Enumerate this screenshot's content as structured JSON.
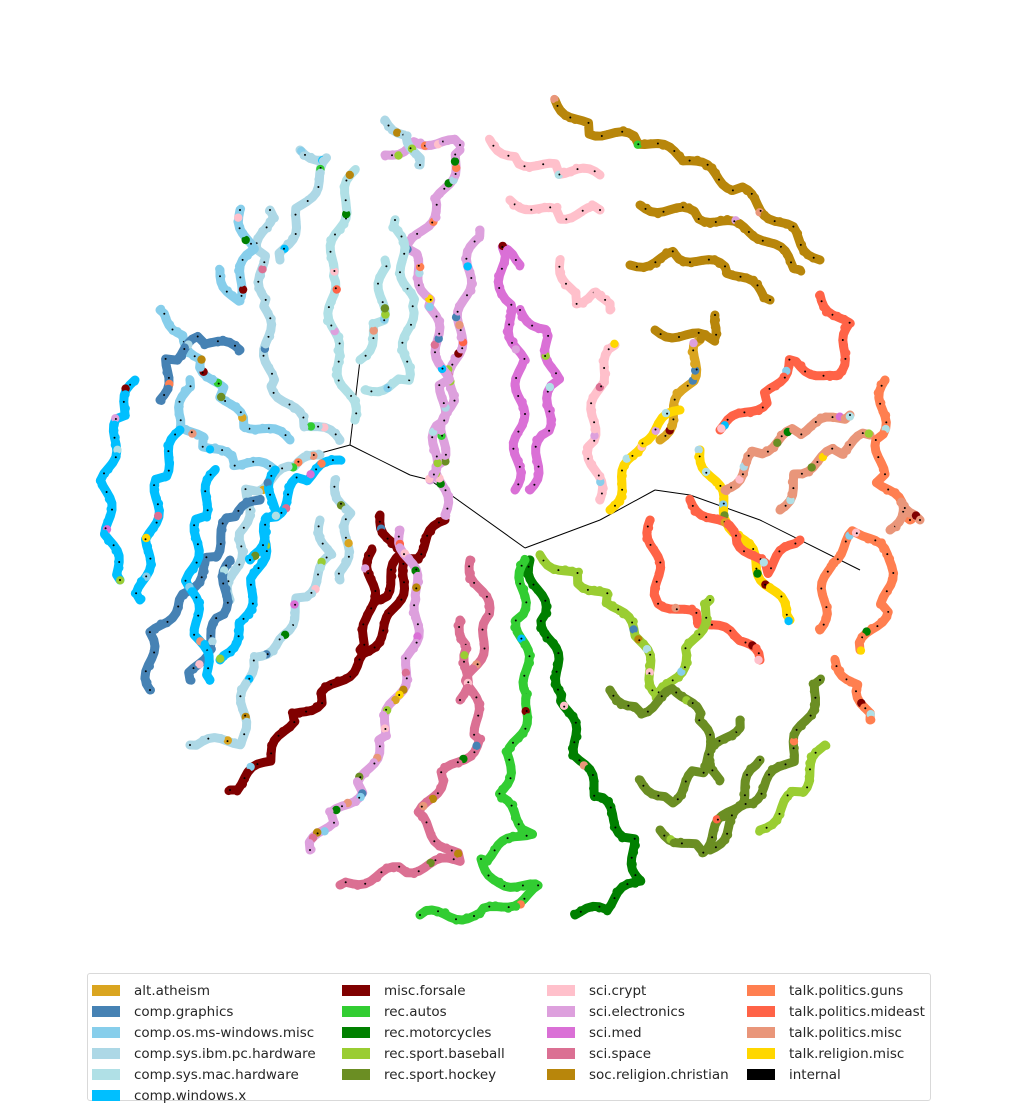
{
  "chart_data": {
    "type": "scatter",
    "title": "",
    "xlabel": "",
    "ylabel": "",
    "axes_visible": false,
    "grid": false,
    "legend_placement": "bottom",
    "legend_columns": 4,
    "description_of_marks": "Tree-shaped scatter of documents; each branch is a chain of points colored by newsgroup, joined by thin black internal edges.",
    "series": [
      {
        "name": "alt.atheism",
        "color": "#daa520"
      },
      {
        "name": "comp.graphics",
        "color": "#4682b4"
      },
      {
        "name": "comp.os.ms-windows.misc",
        "color": "#87ceeb"
      },
      {
        "name": "comp.sys.ibm.pc.hardware",
        "color": "#add8e6"
      },
      {
        "name": "comp.sys.mac.hardware",
        "color": "#b0e0e6"
      },
      {
        "name": "comp.windows.x",
        "color": "#00bfff"
      },
      {
        "name": "misc.forsale",
        "color": "#800000"
      },
      {
        "name": "rec.autos",
        "color": "#32cd32"
      },
      {
        "name": "rec.motorcycles",
        "color": "#008000"
      },
      {
        "name": "rec.sport.baseball",
        "color": "#9acd32"
      },
      {
        "name": "rec.sport.hockey",
        "color": "#6b8e23"
      },
      {
        "name": "sci.crypt",
        "color": "#ffc0cb"
      },
      {
        "name": "sci.electronics",
        "color": "#dda0dd"
      },
      {
        "name": "sci.med",
        "color": "#da70d6"
      },
      {
        "name": "sci.space",
        "color": "#db7093"
      },
      {
        "name": "soc.religion.christian",
        "color": "#b8860b"
      },
      {
        "name": "talk.politics.guns",
        "color": "#ff7f50"
      },
      {
        "name": "talk.politics.mideast",
        "color": "#ff6347"
      },
      {
        "name": "talk.politics.misc",
        "color": "#e9967a"
      },
      {
        "name": "talk.religion.misc",
        "color": "#ffd700"
      },
      {
        "name": "internal",
        "color": "#000000"
      }
    ]
  }
}
